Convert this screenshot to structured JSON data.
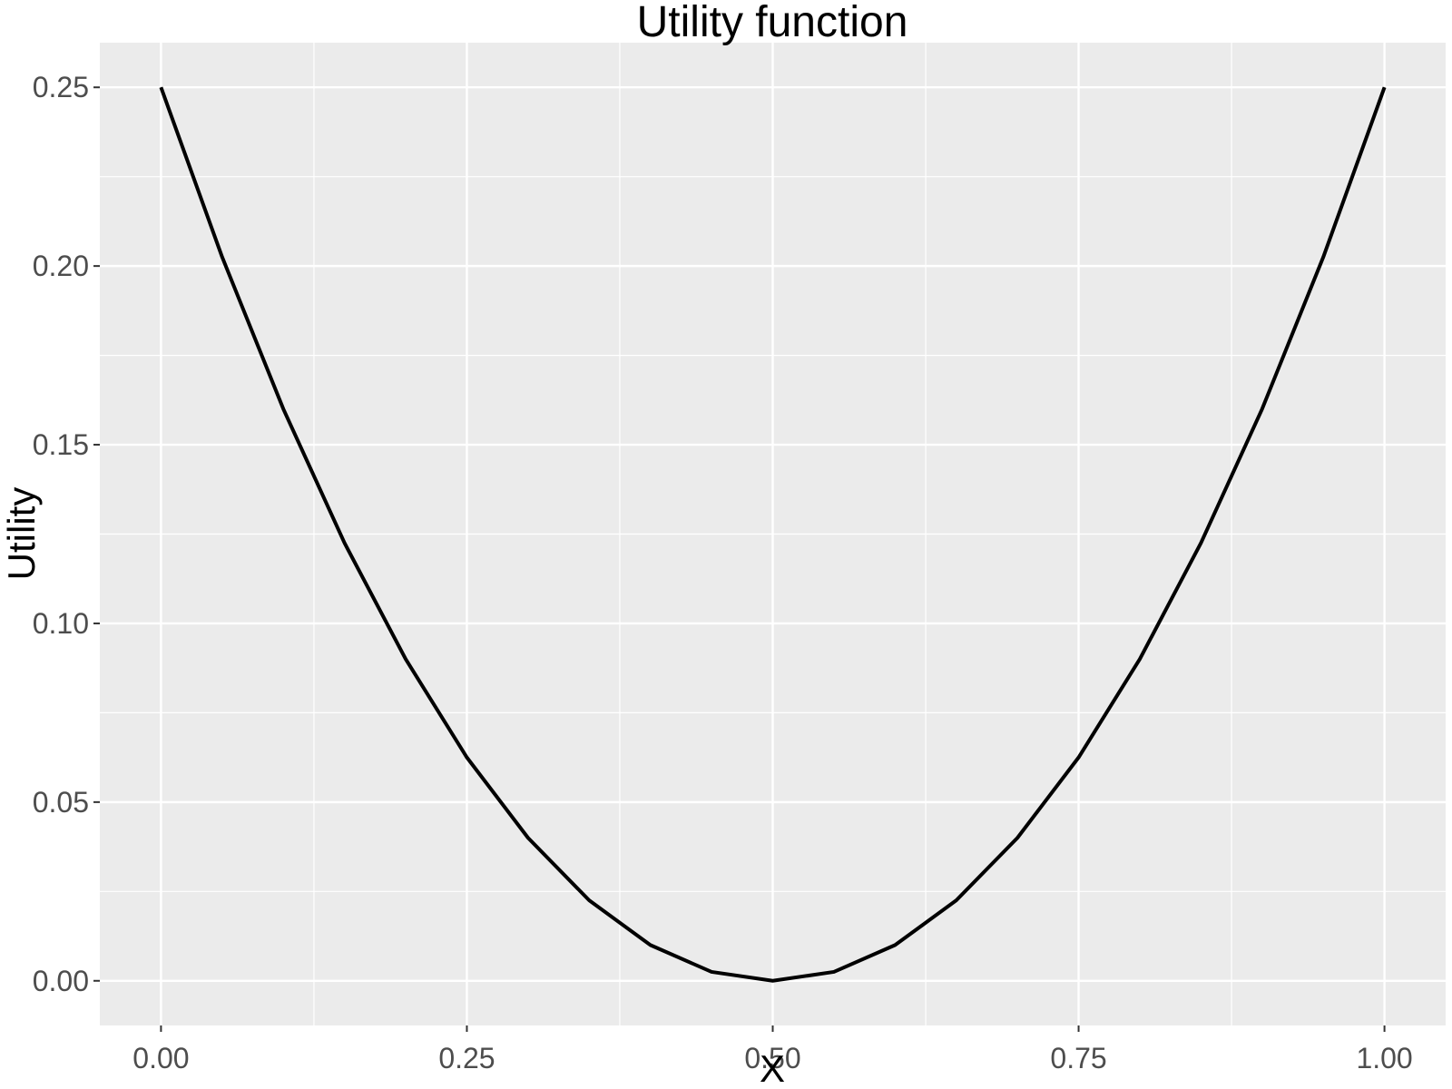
{
  "chart_data": {
    "type": "line",
    "title": "Utility function",
    "xlabel": "X",
    "ylabel": "Utility",
    "xlim": [
      -0.05,
      1.05
    ],
    "ylim": [
      -0.0125,
      0.2625
    ],
    "x_ticks": [
      0.0,
      0.25,
      0.5,
      0.75,
      1.0
    ],
    "x_tick_labels": [
      "0.00",
      "0.25",
      "0.50",
      "0.75",
      "1.00"
    ],
    "y_ticks": [
      0.0,
      0.05,
      0.1,
      0.15,
      0.2,
      0.25
    ],
    "y_tick_labels": [
      "0.00",
      "0.05",
      "0.10",
      "0.15",
      "0.20",
      "0.25"
    ],
    "grid": true,
    "background_color": "#EBEBEB",
    "grid_color": "#FFFFFF",
    "series": [
      {
        "color": "#000000",
        "x": [
          0.0,
          0.05,
          0.1,
          0.15,
          0.2,
          0.25,
          0.3,
          0.35,
          0.4,
          0.45,
          0.5,
          0.55,
          0.6,
          0.65,
          0.7,
          0.75,
          0.8,
          0.85,
          0.9,
          0.95,
          1.0
        ],
        "y": [
          0.25,
          0.2025,
          0.16,
          0.1225,
          0.09,
          0.0625,
          0.04,
          0.0225,
          0.01,
          0.0025,
          0.0,
          0.0025,
          0.01,
          0.0225,
          0.04,
          0.0625,
          0.09,
          0.1225,
          0.16,
          0.2025,
          0.25
        ]
      }
    ]
  }
}
